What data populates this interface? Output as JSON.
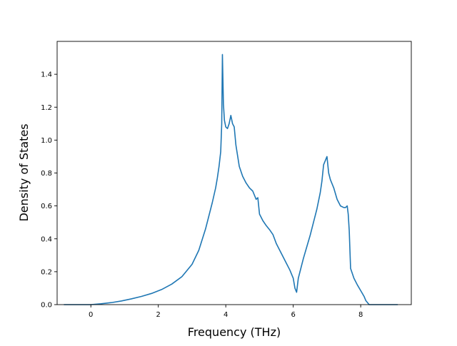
{
  "chart_data": {
    "type": "line",
    "title": "",
    "xlabel": "Frequency (THz)",
    "ylabel": "Density of States",
    "xlim": [
      -1.0,
      9.5
    ],
    "ylim": [
      0.0,
      1.6
    ],
    "xticks": [
      0,
      2,
      4,
      6,
      8
    ],
    "xtick_labels": [
      "0",
      "2",
      "4",
      "6",
      "8"
    ],
    "yticks": [
      0.0,
      0.2,
      0.4,
      0.6,
      0.8,
      1.0,
      1.2,
      1.4
    ],
    "ytick_labels": [
      "0.0",
      "0.2",
      "0.4",
      "0.6",
      "0.8",
      "1.0",
      "1.2",
      "1.4"
    ],
    "grid": false,
    "legend": "none",
    "line_color": "#1f77b4",
    "series": [
      {
        "x": [
          -0.8,
          -0.5,
          0.0,
          0.3,
          0.6,
          0.9,
          1.2,
          1.5,
          1.8,
          2.1,
          2.4,
          2.7,
          3.0,
          3.2,
          3.4,
          3.6,
          3.7,
          3.75,
          3.8,
          3.85,
          3.88,
          3.9,
          3.93,
          3.96,
          4.0,
          4.05,
          4.1,
          4.15,
          4.2,
          4.25,
          4.3,
          4.4,
          4.5,
          4.6,
          4.7,
          4.8,
          4.9,
          4.95,
          5.0,
          5.1,
          5.2,
          5.3,
          5.4,
          5.5,
          5.6,
          5.7,
          5.8,
          5.9,
          6.0,
          6.05,
          6.1,
          6.15,
          6.2,
          6.3,
          6.4,
          6.5,
          6.6,
          6.7,
          6.8,
          6.85,
          6.9,
          7.0,
          7.05,
          7.1,
          7.2,
          7.3,
          7.4,
          7.5,
          7.55,
          7.6,
          7.63,
          7.66,
          7.7,
          7.8,
          7.9,
          8.0,
          8.1,
          8.15,
          8.25,
          8.5,
          9.1
        ],
        "y": [
          0.0,
          0.0,
          0.0,
          0.005,
          0.012,
          0.022,
          0.035,
          0.05,
          0.068,
          0.092,
          0.125,
          0.17,
          0.245,
          0.33,
          0.46,
          0.62,
          0.71,
          0.77,
          0.84,
          0.93,
          1.1,
          1.52,
          1.22,
          1.12,
          1.08,
          1.07,
          1.1,
          1.15,
          1.1,
          1.08,
          0.97,
          0.84,
          0.78,
          0.74,
          0.71,
          0.69,
          0.64,
          0.65,
          0.55,
          0.51,
          0.48,
          0.455,
          0.425,
          0.37,
          0.33,
          0.29,
          0.25,
          0.21,
          0.16,
          0.1,
          0.075,
          0.16,
          0.2,
          0.28,
          0.35,
          0.42,
          0.5,
          0.58,
          0.68,
          0.75,
          0.85,
          0.9,
          0.8,
          0.76,
          0.71,
          0.64,
          0.6,
          0.59,
          0.59,
          0.6,
          0.55,
          0.45,
          0.22,
          0.16,
          0.12,
          0.085,
          0.05,
          0.025,
          0.0,
          0.0,
          0.0
        ]
      }
    ]
  }
}
